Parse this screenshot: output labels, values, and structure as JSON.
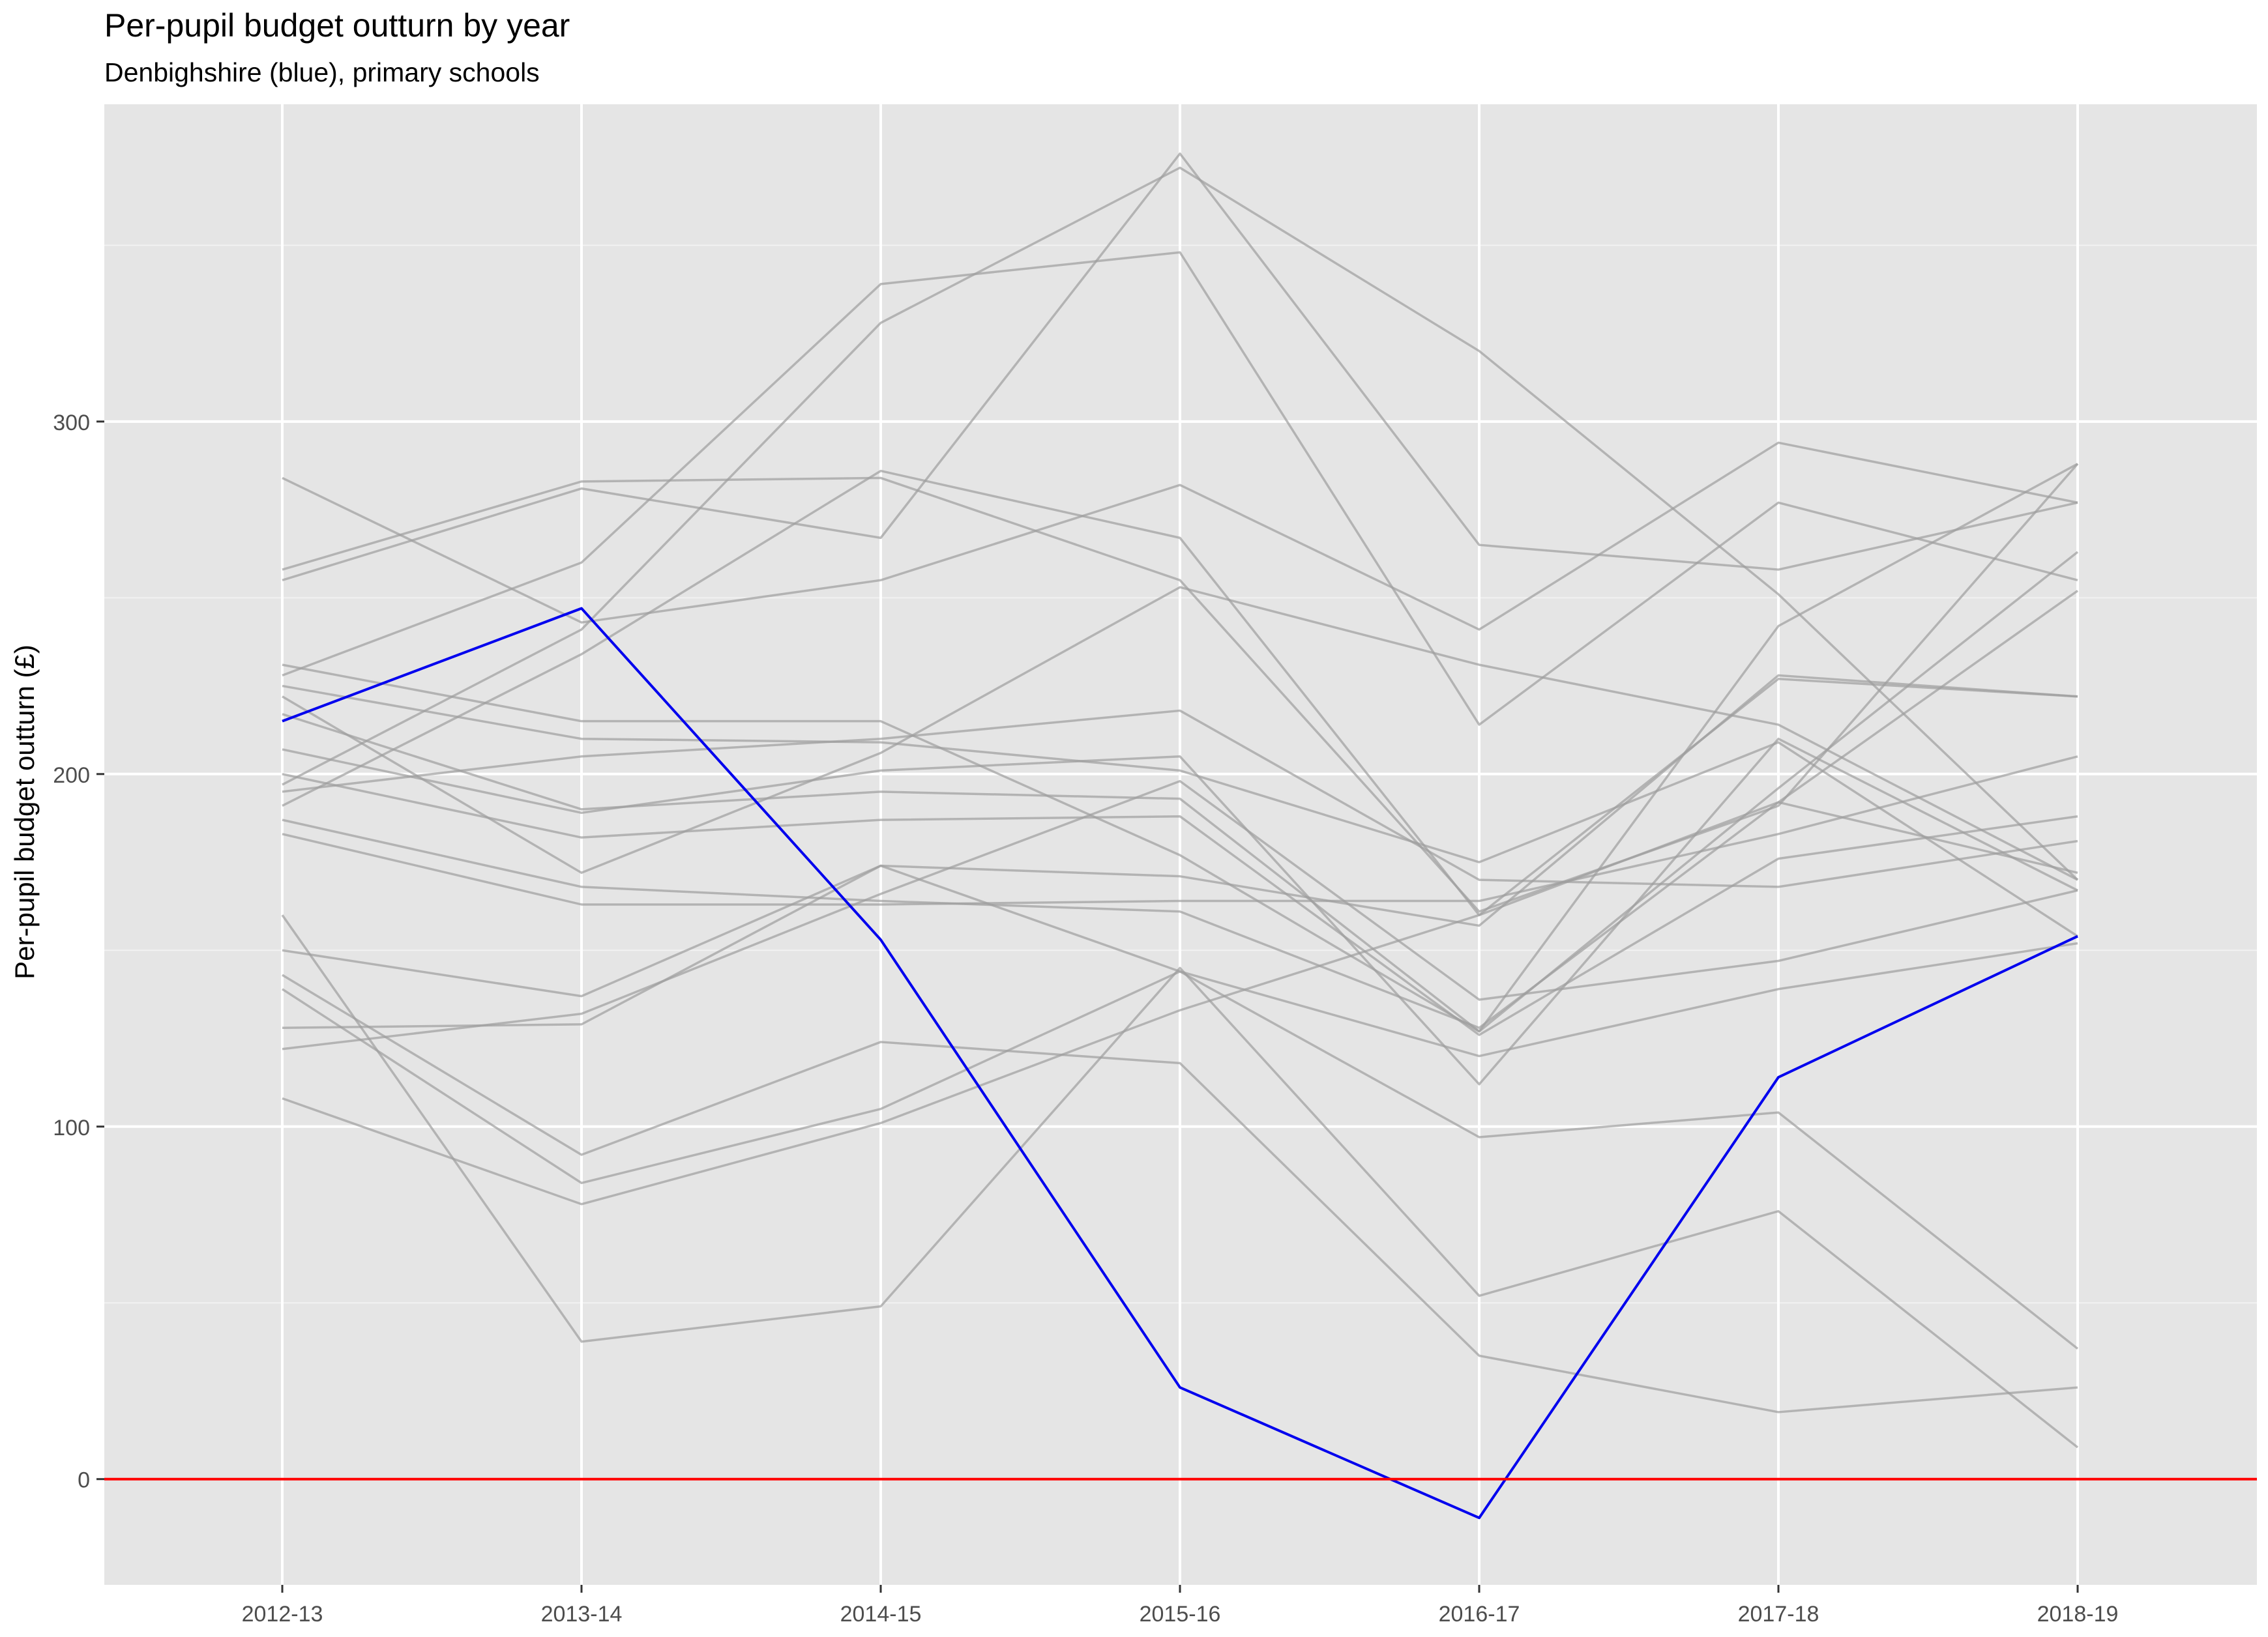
{
  "title": "Per-pupil budget outturn by year",
  "subtitle": "Denbighshire (blue), primary schools",
  "chart_data": {
    "type": "line",
    "title": "Per-pupil budget outturn by year",
    "subtitle": "Denbighshire (blue), primary schools",
    "xlabel": "",
    "ylabel": "Per-pupil budget outturn (£)",
    "categories": [
      "2012-13",
      "2013-14",
      "2014-15",
      "2015-16",
      "2016-17",
      "2017-18",
      "2018-19"
    ],
    "ylim": [
      -30,
      390
    ],
    "yticks": [
      0,
      100,
      200,
      300
    ],
    "grid": true,
    "reference_line": {
      "y": 0,
      "color": "#ff0000"
    },
    "highlight_color": "#0000ee",
    "other_color": "#9e9e9e",
    "background_color": "#e5e5e5",
    "series": [
      {
        "highlight": true,
        "values": [
          215,
          247,
          153,
          26,
          -11,
          114,
          154
        ]
      },
      {
        "values": [
          258,
          283,
          284,
          255,
          161,
          191,
          288
        ]
      },
      {
        "values": [
          255,
          281,
          267,
          376,
          265,
          258,
          277
        ]
      },
      {
        "values": [
          284,
          243,
          255,
          282,
          241,
          294,
          277
        ]
      },
      {
        "values": [
          231,
          215,
          215,
          177,
          127,
          242,
          288
        ]
      },
      {
        "values": [
          228,
          260,
          339,
          348,
          214,
          277,
          255
        ]
      },
      {
        "values": [
          225,
          210,
          209,
          201,
          175,
          209,
          154
        ]
      },
      {
        "values": [
          222,
          172,
          206,
          253,
          231,
          214,
          170
        ]
      },
      {
        "values": [
          217,
          190,
          195,
          193,
          127,
          196,
          263
        ]
      },
      {
        "values": [
          207,
          189,
          201,
          205,
          112,
          210,
          167
        ]
      },
      {
        "values": [
          197,
          241,
          328,
          372,
          320,
          251,
          170
        ]
      },
      {
        "values": [
          191,
          234,
          286,
          267,
          160,
          227,
          222
        ]
      },
      {
        "values": [
          187,
          168,
          164,
          161,
          128,
          192,
          172
        ]
      },
      {
        "values": [
          183,
          163,
          163,
          164,
          164,
          183,
          205
        ]
      },
      {
        "values": [
          150,
          137,
          174,
          144,
          97,
          104,
          37
        ]
      },
      {
        "values": [
          143,
          92,
          124,
          118,
          35,
          19,
          26
        ]
      },
      {
        "values": [
          139,
          84,
          105,
          144,
          120,
          139,
          152
        ]
      },
      {
        "values": [
          128,
          129,
          174,
          171,
          157,
          228,
          222
        ]
      },
      {
        "values": [
          122,
          132,
          166,
          198,
          136,
          147,
          167
        ]
      },
      {
        "values": [
          160,
          39,
          49,
          145,
          52,
          76,
          9
        ]
      },
      {
        "values": [
          108,
          78,
          101,
          133,
          160,
          192,
          252
        ]
      },
      {
        "values": [
          200,
          182,
          187,
          188,
          126,
          176,
          188
        ]
      },
      {
        "values": [
          195,
          205,
          210,
          218,
          170,
          168,
          181
        ]
      }
    ]
  }
}
